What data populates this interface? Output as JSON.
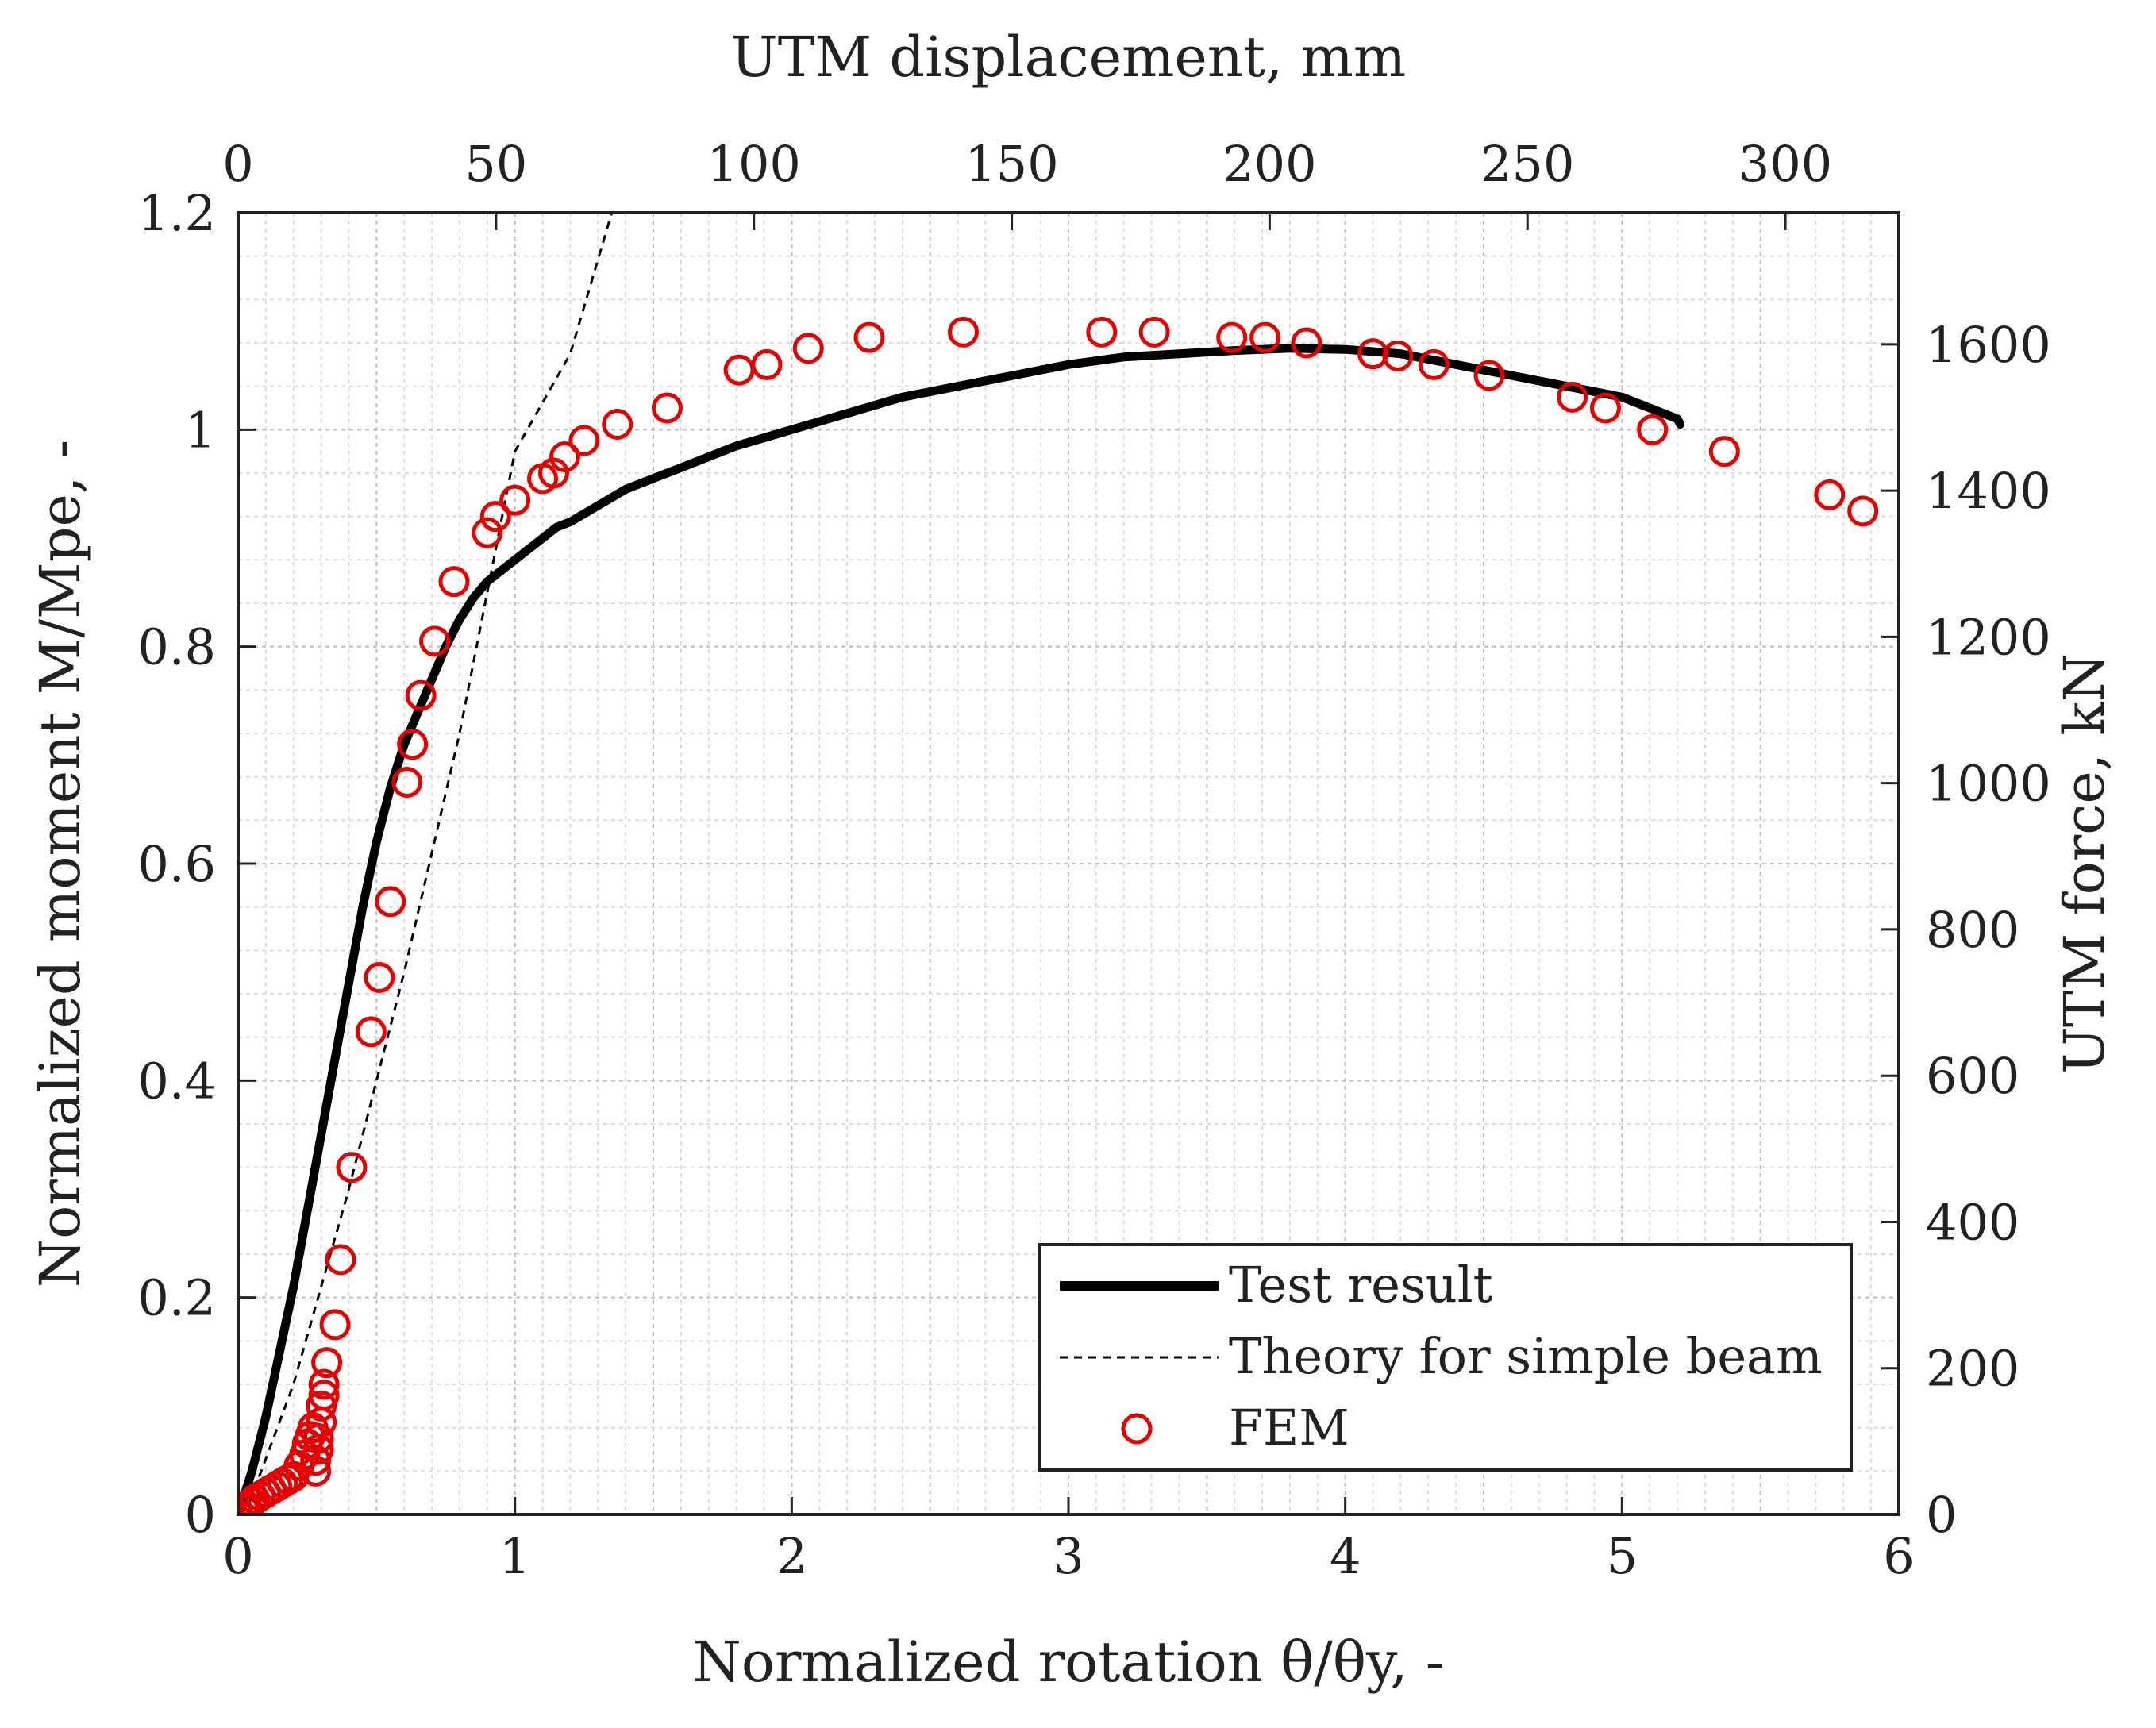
{
  "chart_data": {
    "type": "line",
    "xlabel": "Normalized rotation θ/θy, -",
    "ylabel": "Normalized moment M/Mpe, -",
    "x2label": "UTM displacement, mm",
    "y2label": "UTM force, kN",
    "xlim": [
      0,
      6
    ],
    "ylim": [
      0,
      1.2
    ],
    "x2lim": [
      0,
      322
    ],
    "y2lim": [
      0,
      1780
    ],
    "x_ticks": [
      "0",
      "1",
      "2",
      "3",
      "4",
      "5",
      "6"
    ],
    "y_ticks": [
      "0",
      "0.2",
      "0.4",
      "0.6",
      "0.8",
      "1",
      "1.2"
    ],
    "x2_ticks": [
      "0",
      "50",
      "100",
      "150",
      "200",
      "250",
      "300"
    ],
    "y2_ticks": [
      "0",
      "200",
      "400",
      "600",
      "800",
      "1000",
      "1200",
      "1400",
      "1600"
    ],
    "grid": "minor",
    "legend_position": "bottom-right",
    "series": [
      {
        "name": "Test result",
        "style": "solid-thick",
        "color": "#000000",
        "x": [
          0,
          0.05,
          0.1,
          0.15,
          0.2,
          0.25,
          0.3,
          0.35,
          0.4,
          0.45,
          0.5,
          0.55,
          0.6,
          0.65,
          0.7,
          0.75,
          0.8,
          0.85,
          0.9,
          0.95,
          1.0,
          1.05,
          1.1,
          1.15,
          1.2,
          1.3,
          1.4,
          1.5,
          1.6,
          1.7,
          1.8,
          2.0,
          2.2,
          2.4,
          2.6,
          2.8,
          3.0,
          3.2,
          3.4,
          3.6,
          3.8,
          4.0,
          4.2,
          4.4,
          4.6,
          4.8,
          5.0,
          5.1,
          5.2,
          5.21
        ],
        "y": [
          0,
          0.04,
          0.09,
          0.15,
          0.21,
          0.28,
          0.35,
          0.42,
          0.49,
          0.56,
          0.62,
          0.67,
          0.71,
          0.74,
          0.77,
          0.8,
          0.825,
          0.845,
          0.86,
          0.87,
          0.88,
          0.89,
          0.9,
          0.91,
          0.915,
          0.93,
          0.945,
          0.955,
          0.965,
          0.975,
          0.985,
          1.0,
          1.015,
          1.03,
          1.04,
          1.05,
          1.06,
          1.067,
          1.07,
          1.073,
          1.075,
          1.074,
          1.07,
          1.06,
          1.05,
          1.04,
          1.03,
          1.02,
          1.01,
          1.005
        ]
      },
      {
        "name": "Theory for simple beam",
        "style": "dashed",
        "color": "#000000",
        "x": [
          0.04,
          0.2,
          0.4,
          0.6,
          0.8,
          1.0,
          1.2,
          1.35
        ],
        "y": [
          0.01,
          0.12,
          0.3,
          0.5,
          0.72,
          0.98,
          1.07,
          1.2
        ]
      },
      {
        "name": "FEM",
        "style": "markers-circle",
        "color": "#e60000",
        "x": [
          0.0,
          0.02,
          0.03,
          0.05,
          0.06,
          0.08,
          0.1,
          0.12,
          0.14,
          0.16,
          0.18,
          0.2,
          0.22,
          0.24,
          0.25,
          0.26,
          0.27,
          0.28,
          0.28,
          0.29,
          0.29,
          0.3,
          0.3,
          0.31,
          0.31,
          0.32,
          0.35,
          0.37,
          0.41,
          0.48,
          0.51,
          0.55,
          0.61,
          0.63,
          0.66,
          0.71,
          0.78,
          0.9,
          0.93,
          1.0,
          1.1,
          1.14,
          1.18,
          1.25,
          1.37,
          1.55,
          1.81,
          1.91,
          2.06,
          2.28,
          2.62,
          3.12,
          3.31,
          3.59,
          3.71,
          3.86,
          4.1,
          4.19,
          4.32,
          4.52,
          4.82,
          4.94,
          5.11,
          5.37,
          5.75,
          5.87
        ],
        "y": [
          0.0,
          0.005,
          0.008,
          0.011,
          0.014,
          0.017,
          0.02,
          0.023,
          0.026,
          0.029,
          0.032,
          0.035,
          0.045,
          0.055,
          0.065,
          0.072,
          0.08,
          0.04,
          0.05,
          0.06,
          0.07,
          0.085,
          0.1,
          0.11,
          0.12,
          0.14,
          0.175,
          0.235,
          0.32,
          0.445,
          0.495,
          0.565,
          0.675,
          0.71,
          0.755,
          0.805,
          0.86,
          0.905,
          0.92,
          0.935,
          0.955,
          0.96,
          0.975,
          0.99,
          1.005,
          1.02,
          1.055,
          1.06,
          1.075,
          1.085,
          1.09,
          1.09,
          1.09,
          1.085,
          1.085,
          1.08,
          1.07,
          1.068,
          1.06,
          1.05,
          1.03,
          1.02,
          1.0,
          0.98,
          0.94,
          0.925
        ]
      }
    ]
  }
}
